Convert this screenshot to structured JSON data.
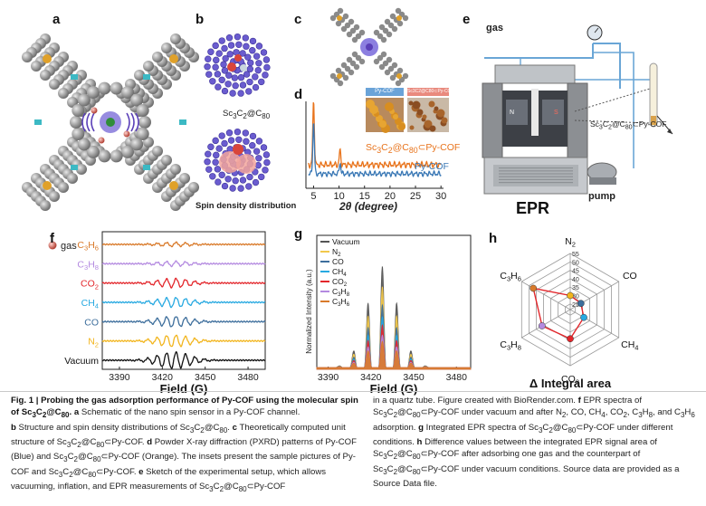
{
  "panels": {
    "a": {
      "label": "a",
      "gas_label": "gas"
    },
    "b": {
      "label": "b",
      "top_caption": "Sc3C2@C80",
      "bottom_caption": "Spin density distribution"
    },
    "c": {
      "label": "c"
    },
    "d": {
      "label": "d",
      "inset_left": "Py-COF",
      "inset_right": "Sc3C2@C80⊂Py-COF"
    },
    "e": {
      "label": "e",
      "gas_label": "gas",
      "pump_label": "pump",
      "epr_label": "EPR",
      "sample_label": "Sc3C2@C80⊂Py-COF",
      "magnet_n": "N",
      "magnet_s": "S"
    },
    "f": {
      "label": "f"
    },
    "g": {
      "label": "g"
    },
    "h": {
      "label": "h"
    }
  },
  "colors": {
    "pycof": "#3a78b5",
    "composite": "#e8731b",
    "vacuum": "#111111",
    "n2": "#f2b51d",
    "co": "#3d6e9c",
    "ch4": "#27a9e1",
    "co2": "#e3262b",
    "c3h8": "#b48ae0",
    "c3h6": "#d97a2a"
  },
  "chart_data": [
    {
      "id": "d",
      "type": "line",
      "xlabel": "2θ (degree)",
      "x_ticks": [
        5,
        10,
        15,
        20,
        25,
        30
      ],
      "xlim": [
        3.5,
        30.5
      ],
      "series": [
        {
          "name": "Sc3C2@C80⊂Py-COF",
          "color": "#e8731b",
          "peaks": [
            [
              5.0,
              1.0
            ],
            [
              10.2,
              0.22
            ]
          ]
        },
        {
          "name": "Py-COF",
          "color": "#3a78b5",
          "peaks": [
            [
              5.0,
              0.95
            ],
            [
              10.2,
              0.2
            ]
          ]
        }
      ]
    },
    {
      "id": "f",
      "type": "line",
      "xlabel": "Field (G)",
      "x_ticks": [
        3390,
        3420,
        3450,
        3480
      ],
      "xlim": [
        3378,
        3492
      ],
      "series": [
        {
          "name": "C3H6",
          "amp": 0.25,
          "color": "#d97a2a"
        },
        {
          "name": "C3H8",
          "amp": 0.3,
          "color": "#b48ae0"
        },
        {
          "name": "CO2",
          "amp": 0.55,
          "color": "#e3262b"
        },
        {
          "name": "CH4",
          "amp": 0.6,
          "color": "#27a9e1"
        },
        {
          "name": "CO",
          "amp": 0.65,
          "color": "#3d6e9c"
        },
        {
          "name": "N2",
          "amp": 0.72,
          "color": "#f2b51d"
        },
        {
          "name": "Vacuum",
          "amp": 1.0,
          "color": "#111111"
        }
      ]
    },
    {
      "id": "g",
      "type": "area",
      "xlabel": "Field (G)",
      "ylabel": "Normalized Intensity (a.u.)",
      "x_ticks": [
        3390,
        3420,
        3450,
        3480
      ],
      "xlim": [
        3382,
        3490
      ],
      "series": [
        {
          "name": "Vacuum",
          "scale": 1.0,
          "color": "#555555"
        },
        {
          "name": "N2",
          "scale": 0.8,
          "color": "#f2c84b"
        },
        {
          "name": "CO",
          "scale": 0.62,
          "color": "#3d6e9c"
        },
        {
          "name": "CH4",
          "scale": 0.5,
          "color": "#27a9e1"
        },
        {
          "name": "CO2",
          "scale": 0.42,
          "color": "#e3262b"
        },
        {
          "name": "C3H8",
          "scale": 0.32,
          "color": "#b48ae0"
        },
        {
          "name": "C3H6",
          "scale": 0.26,
          "color": "#d97a2a"
        }
      ]
    },
    {
      "id": "h",
      "type": "radar",
      "title": "Δ Integral area",
      "axes": [
        "N2",
        "CO",
        "CH4",
        "CO2",
        "C3H8",
        "C3H6"
      ],
      "r_ticks": [
        25,
        30,
        35,
        40,
        45,
        50,
        55
      ],
      "rlim": [
        25,
        55
      ],
      "values": [
        30,
        29,
        31,
        39,
        41,
        47
      ],
      "colors": [
        "#f2b51d",
        "#3d6e9c",
        "#27a9e1",
        "#e3262b",
        "#b48ae0",
        "#d97a2a"
      ]
    }
  ],
  "caption": {
    "fig": "Fig. 1 | Probing the gas adsorption performance of Py-COF using the molecular spin of Sc3C2@C80.",
    "col1_rest": [
      " a Schematic of the nano spin sensor in a Py-COF channel.",
      "b Structure and spin density distributions of Sc3C2@C80. c Theoretically computed unit structure of Sc3C2@C80⊂Py-COF. d Powder X-ray diffraction (PXRD) patterns of Py-COF (Blue) and Sc3C2@C80⊂Py-COF (Orange). The insets present the sample pictures of Py-COF and Sc3C2@C80⊂Py-COF. e Sketch of the experimental setup, which allows vacuuming, inflation, and EPR measurements of Sc3C2@C80⊂Py-COF"
    ],
    "col2": "in a quartz tube. Figure created with BioRender.com. f EPR spectra of Sc3C2@C80⊂Py-COF under vacuum and after N2, CO, CH4, CO2, C3H8, and C3H6 adsorption. g Integrated EPR spectra of Sc3C2@C80⊂Py-COF under different conditions. h Difference values between the integrated EPR signal area of Sc3C2@C80⊂Py-COF after adsorbing one gas and the counterpart of Sc3C2@C80⊂Py-COF under vacuum conditions. Source data are provided as a Source Data file."
  }
}
